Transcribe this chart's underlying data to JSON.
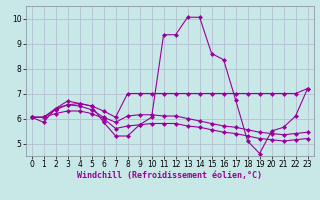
{
  "xlabel": "Windchill (Refroidissement éolien,°C)",
  "background_color": "#c8e8e8",
  "grid_color": "#b0b8cc",
  "line_color": "#990099",
  "xlim": [
    -0.5,
    23.5
  ],
  "ylim": [
    4.5,
    10.5
  ],
  "yticks": [
    5,
    6,
    7,
    8,
    9,
    10
  ],
  "xticks": [
    0,
    1,
    2,
    3,
    4,
    5,
    6,
    7,
    8,
    9,
    10,
    11,
    12,
    13,
    14,
    15,
    16,
    17,
    18,
    19,
    20,
    21,
    22,
    23
  ],
  "lines": [
    {
      "x": [
        0,
        1,
        2,
        3,
        4,
        5,
        6,
        7,
        8,
        9,
        10,
        11,
        12,
        13,
        14,
        15,
        16,
        17,
        18,
        19,
        20,
        21,
        22,
        23
      ],
      "y": [
        6.05,
        5.85,
        6.4,
        6.7,
        6.6,
        6.5,
        5.85,
        5.3,
        5.3,
        5.75,
        6.05,
        9.35,
        9.35,
        10.05,
        10.05,
        8.6,
        8.35,
        6.75,
        5.1,
        4.6,
        5.5,
        5.65,
        6.1,
        7.2
      ]
    },
    {
      "x": [
        0,
        1,
        2,
        3,
        4,
        5,
        6,
        7,
        8,
        9,
        10,
        11,
        12,
        13,
        14,
        15,
        16,
        17,
        18,
        19,
        20,
        21,
        22,
        23
      ],
      "y": [
        6.05,
        6.05,
        6.4,
        6.55,
        6.6,
        6.5,
        6.3,
        6.05,
        7.0,
        7.0,
        7.0,
        7.0,
        7.0,
        7.0,
        7.0,
        7.0,
        7.0,
        7.0,
        7.0,
        7.0,
        7.0,
        7.0,
        7.0,
        7.2
      ]
    },
    {
      "x": [
        0,
        1,
        2,
        3,
        4,
        5,
        6,
        7,
        8,
        9,
        10,
        11,
        12,
        13,
        14,
        15,
        16,
        17,
        18,
        19,
        20,
        21,
        22,
        23
      ],
      "y": [
        6.05,
        6.05,
        6.35,
        6.55,
        6.5,
        6.35,
        6.05,
        5.85,
        6.1,
        6.15,
        6.15,
        6.1,
        6.1,
        6.0,
        5.9,
        5.8,
        5.7,
        5.65,
        5.55,
        5.45,
        5.4,
        5.35,
        5.4,
        5.45
      ]
    },
    {
      "x": [
        0,
        1,
        2,
        3,
        4,
        5,
        6,
        7,
        8,
        9,
        10,
        11,
        12,
        13,
        14,
        15,
        16,
        17,
        18,
        19,
        20,
        21,
        22,
        23
      ],
      "y": [
        6.05,
        6.05,
        6.2,
        6.3,
        6.3,
        6.2,
        6.0,
        5.6,
        5.7,
        5.75,
        5.8,
        5.8,
        5.8,
        5.7,
        5.65,
        5.55,
        5.45,
        5.4,
        5.3,
        5.2,
        5.15,
        5.1,
        5.15,
        5.2
      ]
    }
  ],
  "xlabel_fontsize": 6.0,
  "tick_fontsize": 5.5
}
